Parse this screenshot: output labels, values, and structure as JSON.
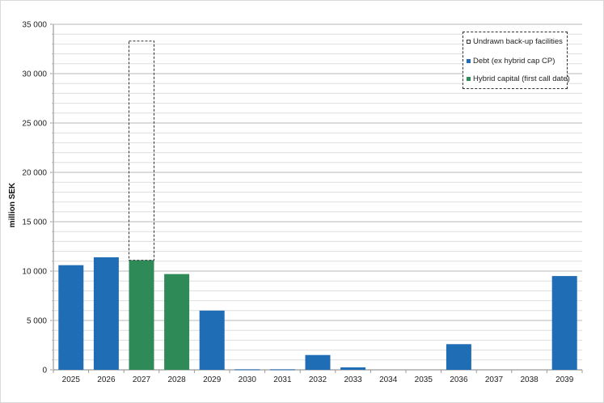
{
  "chart_data": {
    "type": "bar",
    "stacked": true,
    "title": "",
    "xlabel": "",
    "ylabel": "million SEK",
    "ylim": [
      0,
      35000
    ],
    "yticks": [
      0,
      5000,
      10000,
      15000,
      20000,
      25000,
      30000,
      35000
    ],
    "ytick_labels": [
      "0",
      "5 000",
      "10 000",
      "15 000",
      "20 000",
      "25 000",
      "30 000",
      "35 000"
    ],
    "minor_gridlines_every": 1000,
    "grid": true,
    "legend_position": "upper right",
    "categories": [
      "2025",
      "2026",
      "2027",
      "2028",
      "2029",
      "2030",
      "2031",
      "2032",
      "2033",
      "2034",
      "2035",
      "2036",
      "2037",
      "2038",
      "2039"
    ],
    "series": [
      {
        "name": "Debt (ex hybrid cap CP)",
        "color": "#1f6eb5",
        "style": "solid",
        "values": [
          10600,
          11400,
          0,
          0,
          6000,
          50,
          50,
          1500,
          250,
          0,
          0,
          2600,
          0,
          0,
          9500
        ]
      },
      {
        "name": "Hybrid capital (first call date)",
        "color": "#2e8b57",
        "style": "solid",
        "values": [
          0,
          0,
          11100,
          9700,
          0,
          0,
          0,
          0,
          0,
          0,
          0,
          0,
          0,
          0,
          0
        ]
      },
      {
        "name": "Undrawn back-up facilities",
        "color": "#333333",
        "style": "dashed-outline",
        "values": [
          0,
          0,
          22200,
          0,
          0,
          0,
          0,
          0,
          0,
          0,
          0,
          0,
          0,
          0,
          0
        ]
      }
    ]
  },
  "legend": {
    "items": [
      {
        "label": "Undrawn back-up facilities",
        "color": "#ffffff",
        "border": "#333333"
      },
      {
        "label": "Debt (ex hybrid cap CP)",
        "color": "#1f6eb5"
      },
      {
        "label": "Hybrid capital (first call date)",
        "color": "#2e8b57"
      }
    ]
  }
}
